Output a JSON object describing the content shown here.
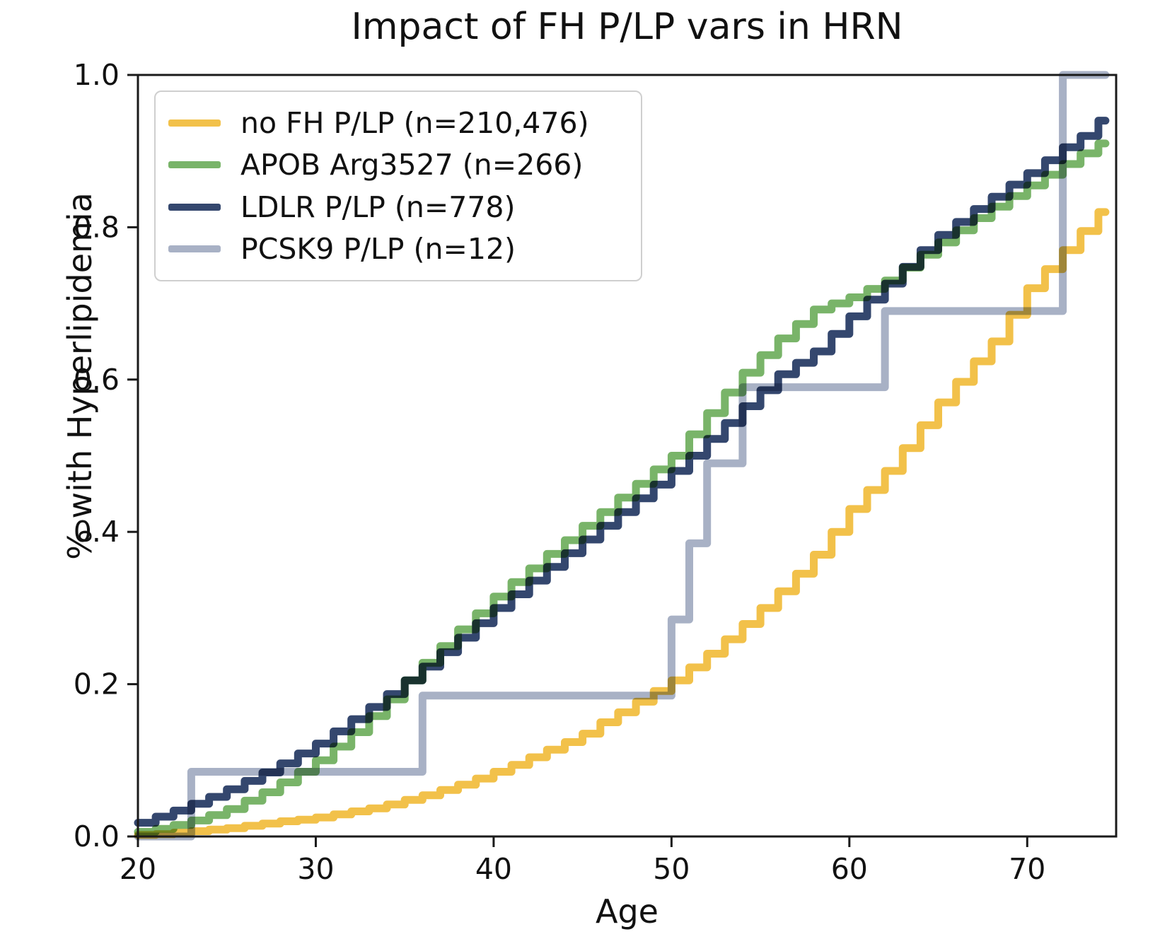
{
  "chart_data": {
    "type": "line",
    "subtype": "step-post-survival",
    "title": "Impact of FH P/LP vars in HRN",
    "xlabel": "Age",
    "ylabel": "% with Hyperlipidemia",
    "xlim": [
      20,
      75
    ],
    "ylim": [
      0.0,
      1.0
    ],
    "x_end": 74.4,
    "xticks": [
      20,
      30,
      40,
      50,
      60,
      70
    ],
    "ytick_labels": [
      "0.0",
      "0.2",
      "0.4",
      "0.6",
      "0.8",
      "1.0"
    ],
    "ytick_values": [
      0.0,
      0.2,
      0.4,
      0.6,
      0.8,
      1.0
    ],
    "grid": false,
    "legend_position": "upper left",
    "line_width": 11,
    "series": [
      {
        "id": "no-fh-plp",
        "name": "no FH P/LP (n=210,476)",
        "color": "#F2C14A",
        "x": [
          20,
          21,
          22,
          23,
          24,
          25,
          26,
          27,
          28,
          29,
          30,
          31,
          32,
          33,
          34,
          35,
          36,
          37,
          38,
          39,
          40,
          41,
          42,
          43,
          44,
          45,
          46,
          47,
          48,
          49,
          50,
          51,
          52,
          53,
          54,
          55,
          56,
          57,
          58,
          59,
          60,
          61,
          62,
          63,
          64,
          65,
          66,
          67,
          68,
          69,
          70,
          71,
          72,
          73,
          74
        ],
        "y": [
          0.002,
          0.003,
          0.005,
          0.007,
          0.009,
          0.011,
          0.014,
          0.017,
          0.02,
          0.022,
          0.025,
          0.029,
          0.033,
          0.037,
          0.042,
          0.048,
          0.054,
          0.061,
          0.068,
          0.076,
          0.085,
          0.094,
          0.104,
          0.114,
          0.124,
          0.135,
          0.15,
          0.163,
          0.177,
          0.191,
          0.205,
          0.222,
          0.24,
          0.259,
          0.279,
          0.3,
          0.322,
          0.345,
          0.37,
          0.4,
          0.43,
          0.455,
          0.48,
          0.51,
          0.54,
          0.57,
          0.597,
          0.624,
          0.65,
          0.685,
          0.72,
          0.745,
          0.77,
          0.795,
          0.82
        ]
      },
      {
        "id": "apob-arg3527",
        "name": "APOB Arg3527 (n=266)",
        "color": "#79B469",
        "x": [
          20,
          21,
          22,
          23,
          24,
          25,
          26,
          27,
          28,
          29,
          30,
          31,
          32,
          33,
          34,
          35,
          36,
          37,
          38,
          39,
          40,
          41,
          42,
          43,
          44,
          45,
          46,
          47,
          48,
          49,
          50,
          51,
          52,
          53,
          54,
          55,
          56,
          57,
          58,
          59,
          60,
          61,
          62,
          63,
          64,
          65,
          66,
          67,
          68,
          69,
          70,
          71,
          72,
          73,
          74
        ],
        "y": [
          0.006,
          0.01,
          0.015,
          0.021,
          0.028,
          0.036,
          0.047,
          0.058,
          0.071,
          0.085,
          0.1,
          0.118,
          0.137,
          0.158,
          0.18,
          0.205,
          0.228,
          0.25,
          0.272,
          0.293,
          0.315,
          0.334,
          0.352,
          0.371,
          0.389,
          0.408,
          0.426,
          0.445,
          0.463,
          0.482,
          0.5,
          0.528,
          0.556,
          0.583,
          0.609,
          0.632,
          0.654,
          0.673,
          0.692,
          0.7,
          0.708,
          0.719,
          0.73,
          0.747,
          0.764,
          0.78,
          0.796,
          0.812,
          0.827,
          0.841,
          0.855,
          0.869,
          0.883,
          0.897,
          0.91
        ]
      },
      {
        "id": "ldlr-plp",
        "name": "LDLR P/LP (n=778)",
        "color": "#34476E",
        "x": [
          20,
          21,
          22,
          23,
          24,
          25,
          26,
          27,
          28,
          29,
          30,
          31,
          32,
          33,
          34,
          35,
          36,
          37,
          38,
          39,
          40,
          41,
          42,
          43,
          44,
          45,
          46,
          47,
          48,
          49,
          50,
          51,
          52,
          53,
          54,
          55,
          56,
          57,
          58,
          59,
          60,
          61,
          62,
          63,
          64,
          65,
          66,
          67,
          68,
          69,
          70,
          71,
          72,
          73,
          74
        ],
        "y": [
          0.018,
          0.026,
          0.034,
          0.043,
          0.052,
          0.062,
          0.073,
          0.084,
          0.096,
          0.109,
          0.122,
          0.138,
          0.154,
          0.17,
          0.187,
          0.205,
          0.223,
          0.242,
          0.261,
          0.28,
          0.3,
          0.318,
          0.336,
          0.354,
          0.372,
          0.39,
          0.408,
          0.426,
          0.444,
          0.462,
          0.48,
          0.5,
          0.522,
          0.543,
          0.565,
          0.586,
          0.607,
          0.622,
          0.637,
          0.66,
          0.683,
          0.705,
          0.726,
          0.748,
          0.77,
          0.79,
          0.807,
          0.824,
          0.84,
          0.856,
          0.871,
          0.888,
          0.905,
          0.92,
          0.94
        ]
      },
      {
        "id": "pcsk9-plp",
        "name": "PCSK9 P/LP (n=12)",
        "color": "#A8B1C5",
        "x": [
          20,
          23,
          36,
          50,
          51,
          52,
          54,
          62,
          72
        ],
        "y": [
          0.0,
          0.085,
          0.185,
          0.285,
          0.385,
          0.49,
          0.59,
          0.69,
          1.0
        ]
      }
    ]
  }
}
